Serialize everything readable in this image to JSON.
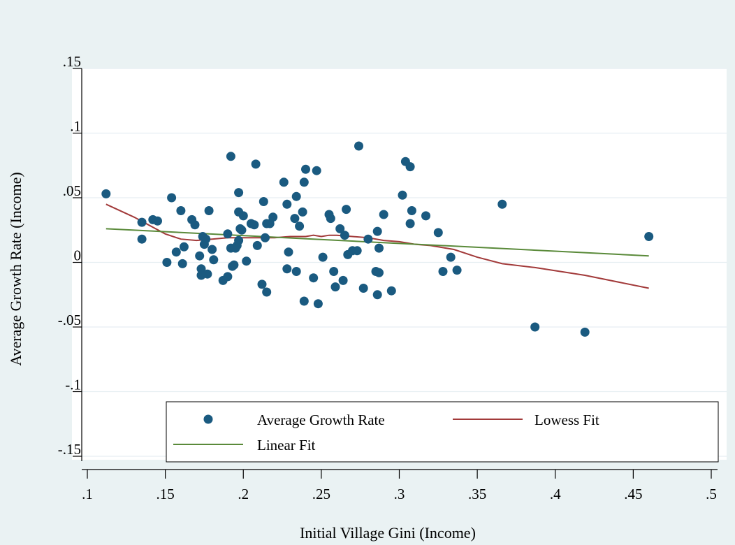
{
  "chart_data": {
    "type": "scatter",
    "xlabel": "Initial Village Gini (Income)",
    "ylabel": "Average Growth Rate (Income)",
    "xlim": [
      0.1,
      0.5
    ],
    "ylim": [
      -0.15,
      0.15
    ],
    "x_ticks": [
      {
        "value": 0.1,
        "label": ".1"
      },
      {
        "value": 0.15,
        "label": ".15"
      },
      {
        "value": 0.2,
        "label": ".2"
      },
      {
        "value": 0.25,
        "label": ".25"
      },
      {
        "value": 0.3,
        "label": ".3"
      },
      {
        "value": 0.35,
        "label": ".35"
      },
      {
        "value": 0.4,
        "label": ".4"
      },
      {
        "value": 0.45,
        "label": ".45"
      },
      {
        "value": 0.5,
        "label": ".5"
      }
    ],
    "y_ticks": [
      {
        "value": 0.15,
        "label": ".15"
      },
      {
        "value": 0.1,
        "label": ".1"
      },
      {
        "value": 0.05,
        "label": ".05"
      },
      {
        "value": 0,
        "label": "0"
      },
      {
        "value": -0.05,
        "label": "-.05"
      },
      {
        "value": -0.1,
        "label": "-.1"
      },
      {
        "value": -0.15,
        "label": "-.15"
      }
    ],
    "grid": true,
    "legend_position": "bottom-inside",
    "colors": {
      "background": "#eaf2f3",
      "plot_background": "#ffffff",
      "grid": "#e6eef2",
      "points": "#1a5a80",
      "lowess": "#a23a3a",
      "linear": "#5a8a3a"
    },
    "series": [
      {
        "name": "Average Growth Rate",
        "kind": "scatter",
        "points": [
          [
            0.112,
            0.053
          ],
          [
            0.135,
            0.031
          ],
          [
            0.135,
            0.018
          ],
          [
            0.142,
            0.033
          ],
          [
            0.145,
            0.032
          ],
          [
            0.151,
            0.0
          ],
          [
            0.154,
            0.05
          ],
          [
            0.157,
            0.008
          ],
          [
            0.16,
            0.04
          ],
          [
            0.161,
            -0.001
          ],
          [
            0.162,
            0.012
          ],
          [
            0.167,
            0.033
          ],
          [
            0.169,
            0.029
          ],
          [
            0.172,
            0.005
          ],
          [
            0.173,
            -0.005
          ],
          [
            0.173,
            -0.01
          ],
          [
            0.174,
            0.02
          ],
          [
            0.175,
            0.014
          ],
          [
            0.176,
            0.018
          ],
          [
            0.177,
            -0.009
          ],
          [
            0.178,
            0.04
          ],
          [
            0.18,
            0.01
          ],
          [
            0.181,
            0.002
          ],
          [
            0.187,
            -0.014
          ],
          [
            0.19,
            -0.011
          ],
          [
            0.19,
            0.022
          ],
          [
            0.192,
            0.082
          ],
          [
            0.192,
            0.011
          ],
          [
            0.193,
            -0.003
          ],
          [
            0.194,
            -0.002
          ],
          [
            0.195,
            0.011
          ],
          [
            0.196,
            0.013
          ],
          [
            0.197,
            0.017
          ],
          [
            0.197,
            0.039
          ],
          [
            0.197,
            0.054
          ],
          [
            0.198,
            0.026
          ],
          [
            0.199,
            0.025
          ],
          [
            0.2,
            0.036
          ],
          [
            0.202,
            0.001
          ],
          [
            0.205,
            0.03
          ],
          [
            0.207,
            0.029
          ],
          [
            0.208,
            0.076
          ],
          [
            0.209,
            0.013
          ],
          [
            0.212,
            -0.017
          ],
          [
            0.213,
            0.047
          ],
          [
            0.214,
            0.019
          ],
          [
            0.215,
            -0.023
          ],
          [
            0.215,
            0.03
          ],
          [
            0.217,
            0.03
          ],
          [
            0.219,
            0.035
          ],
          [
            0.226,
            0.062
          ],
          [
            0.228,
            0.045
          ],
          [
            0.228,
            -0.005
          ],
          [
            0.229,
            0.008
          ],
          [
            0.233,
            0.034
          ],
          [
            0.234,
            0.051
          ],
          [
            0.234,
            -0.007
          ],
          [
            0.236,
            0.028
          ],
          [
            0.238,
            0.039
          ],
          [
            0.239,
            -0.03
          ],
          [
            0.239,
            0.062
          ],
          [
            0.24,
            0.072
          ],
          [
            0.245,
            -0.012
          ],
          [
            0.247,
            0.071
          ],
          [
            0.248,
            -0.032
          ],
          [
            0.251,
            0.004
          ],
          [
            0.255,
            0.037
          ],
          [
            0.256,
            0.034
          ],
          [
            0.258,
            -0.007
          ],
          [
            0.259,
            -0.019
          ],
          [
            0.262,
            0.026
          ],
          [
            0.264,
            -0.014
          ],
          [
            0.265,
            0.021
          ],
          [
            0.266,
            0.041
          ],
          [
            0.267,
            0.006
          ],
          [
            0.27,
            0.009
          ],
          [
            0.273,
            0.009
          ],
          [
            0.274,
            0.09
          ],
          [
            0.277,
            -0.02
          ],
          [
            0.28,
            0.018
          ],
          [
            0.285,
            -0.007
          ],
          [
            0.286,
            0.024
          ],
          [
            0.286,
            -0.025
          ],
          [
            0.287,
            0.011
          ],
          [
            0.287,
            -0.008
          ],
          [
            0.29,
            0.037
          ],
          [
            0.295,
            -0.022
          ],
          [
            0.302,
            0.052
          ],
          [
            0.304,
            0.078
          ],
          [
            0.307,
            0.074
          ],
          [
            0.307,
            0.03
          ],
          [
            0.308,
            0.04
          ],
          [
            0.317,
            0.036
          ],
          [
            0.325,
            0.023
          ],
          [
            0.328,
            -0.007
          ],
          [
            0.333,
            0.004
          ],
          [
            0.337,
            -0.006
          ],
          [
            0.366,
            0.045
          ],
          [
            0.387,
            -0.05
          ],
          [
            0.419,
            -0.054
          ],
          [
            0.46,
            0.02
          ]
        ]
      },
      {
        "name": "Lowess Fit",
        "kind": "line",
        "points": [
          [
            0.112,
            0.045
          ],
          [
            0.13,
            0.035
          ],
          [
            0.15,
            0.022
          ],
          [
            0.16,
            0.018
          ],
          [
            0.17,
            0.017
          ],
          [
            0.18,
            0.018
          ],
          [
            0.19,
            0.019
          ],
          [
            0.2,
            0.019
          ],
          [
            0.21,
            0.019
          ],
          [
            0.22,
            0.019
          ],
          [
            0.23,
            0.02
          ],
          [
            0.24,
            0.02
          ],
          [
            0.245,
            0.021
          ],
          [
            0.25,
            0.02
          ],
          [
            0.255,
            0.021
          ],
          [
            0.26,
            0.021
          ],
          [
            0.27,
            0.02
          ],
          [
            0.28,
            0.019
          ],
          [
            0.29,
            0.017
          ],
          [
            0.3,
            0.016
          ],
          [
            0.31,
            0.014
          ],
          [
            0.32,
            0.013
          ],
          [
            0.335,
            0.01
          ],
          [
            0.35,
            0.004
          ],
          [
            0.366,
            -0.001
          ],
          [
            0.387,
            -0.004
          ],
          [
            0.419,
            -0.01
          ],
          [
            0.46,
            -0.02
          ]
        ]
      },
      {
        "name": "Linear Fit",
        "kind": "line",
        "points": [
          [
            0.112,
            0.026
          ],
          [
            0.46,
            0.005
          ]
        ]
      }
    ]
  }
}
